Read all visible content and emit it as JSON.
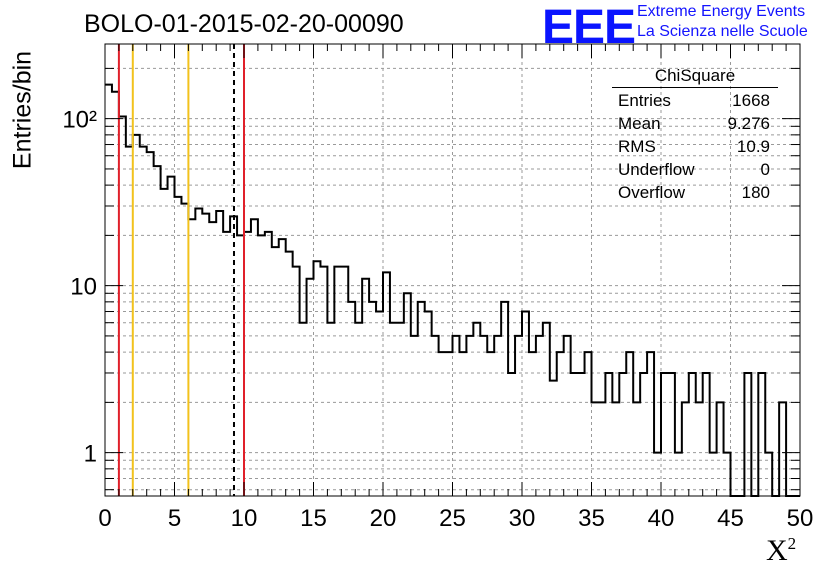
{
  "chart_data": {
    "type": "histogram",
    "title": "BOLO-01-2015-02-20-00090",
    "xlabel": "X",
    "xlabel_superscript": "2",
    "ylabel": "Entries/bin",
    "xlim": [
      0,
      50
    ],
    "ylim": [
      0.55,
      280
    ],
    "y_scale": "log",
    "grid": true,
    "bin_width": 0.5,
    "bin_start": 0,
    "values": [
      160,
      145,
      103,
      68,
      80,
      68,
      63,
      52,
      38,
      45,
      34,
      31,
      25,
      29,
      27,
      24,
      28,
      21,
      26,
      20,
      21,
      25,
      20,
      21,
      17,
      19,
      16,
      13,
      6,
      11,
      14,
      13,
      6,
      13,
      13,
      8,
      6,
      11,
      8,
      7,
      12,
      6,
      6,
      9,
      5,
      8,
      7,
      5,
      4,
      4,
      5,
      4,
      5,
      6,
      5,
      4,
      5,
      8,
      3,
      5,
      7,
      4,
      5,
      6,
      2.7,
      4,
      5,
      3,
      3,
      4,
      2,
      2,
      3,
      2,
      3,
      4,
      2,
      3,
      4,
      1,
      3,
      3,
      1,
      2,
      3,
      2,
      3,
      1,
      2,
      1,
      0,
      0,
      3,
      0,
      3,
      1,
      0,
      2,
      0,
      0
    ],
    "x_ticks": [
      "0",
      "5",
      "10",
      "15",
      "20",
      "25",
      "30",
      "35",
      "40",
      "45",
      "50"
    ],
    "y_ticks": [
      "1",
      "10",
      "10²"
    ],
    "vertical_lines": [
      {
        "x": 1.0,
        "color": "#e0202a",
        "style": "solid"
      },
      {
        "x": 2.0,
        "color": "#f2c21c",
        "style": "solid"
      },
      {
        "x": 6.0,
        "color": "#f2c21c",
        "style": "solid"
      },
      {
        "x": 9.28,
        "color": "#000000",
        "style": "dashed"
      },
      {
        "x": 10.0,
        "color": "#e0202a",
        "style": "solid"
      }
    ],
    "stats_box": {
      "name": "ChiSquare",
      "rows": [
        {
          "label": "Entries",
          "value": "1668"
        },
        {
          "label": "Mean",
          "value": "9.276"
        },
        {
          "label": "RMS",
          "value": "10.9"
        },
        {
          "label": "Underflow",
          "value": "0"
        },
        {
          "label": "Overflow",
          "value": "180"
        }
      ]
    }
  },
  "logo": {
    "mark": "EEE",
    "line1": "Extreme Energy Events",
    "line2": "La Scienza nelle Scuole",
    "color": "#1414ff"
  }
}
